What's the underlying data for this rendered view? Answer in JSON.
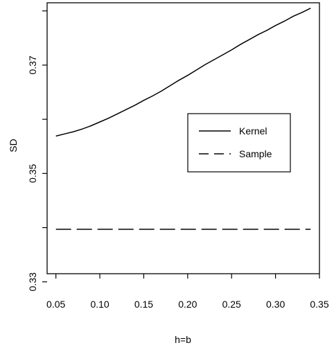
{
  "chart_data": {
    "type": "line",
    "title": "",
    "xlabel": "h=b",
    "ylabel": "SD",
    "xlim": [
      0.04,
      0.35
    ],
    "ylim": [
      0.3315,
      0.3815
    ],
    "x_ticks": [
      0.05,
      0.1,
      0.15,
      0.2,
      0.25,
      0.3,
      0.35
    ],
    "x_tick_labels": [
      "0.05",
      "0.10",
      "0.15",
      "0.20",
      "0.25",
      "0.30",
      "0.35"
    ],
    "y_ticks": [
      0.33,
      0.34,
      0.35,
      0.36,
      0.37,
      0.38
    ],
    "y_tick_labels": [
      "0.33",
      "",
      "0.35",
      "",
      "0.37",
      ""
    ],
    "grid": false,
    "legend": {
      "position": "right",
      "entries": [
        {
          "label": "Kernel",
          "dash": "solid"
        },
        {
          "label": "Sample",
          "dash": "dashed"
        }
      ]
    },
    "series": [
      {
        "name": "Kernel",
        "dash": "solid",
        "color": "#000000",
        "x": [
          0.05,
          0.06,
          0.07,
          0.08,
          0.09,
          0.1,
          0.11,
          0.12,
          0.13,
          0.14,
          0.15,
          0.16,
          0.17,
          0.18,
          0.19,
          0.2,
          0.21,
          0.22,
          0.23,
          0.24,
          0.25,
          0.26,
          0.27,
          0.28,
          0.29,
          0.3,
          0.31,
          0.32,
          0.33,
          0.34
        ],
        "y": [
          0.3569,
          0.3573,
          0.3577,
          0.3582,
          0.3588,
          0.3595,
          0.3602,
          0.361,
          0.3618,
          0.3626,
          0.3635,
          0.3643,
          0.3652,
          0.3662,
          0.3672,
          0.3681,
          0.3691,
          0.3701,
          0.371,
          0.3719,
          0.3728,
          0.3738,
          0.3747,
          0.3756,
          0.3764,
          0.3773,
          0.3781,
          0.379,
          0.3797,
          0.3805
        ]
      },
      {
        "name": "Sample",
        "dash": "dashed",
        "color": "#000000",
        "x": [
          0.05,
          0.34
        ],
        "y": [
          0.3397,
          0.3397
        ]
      }
    ]
  }
}
